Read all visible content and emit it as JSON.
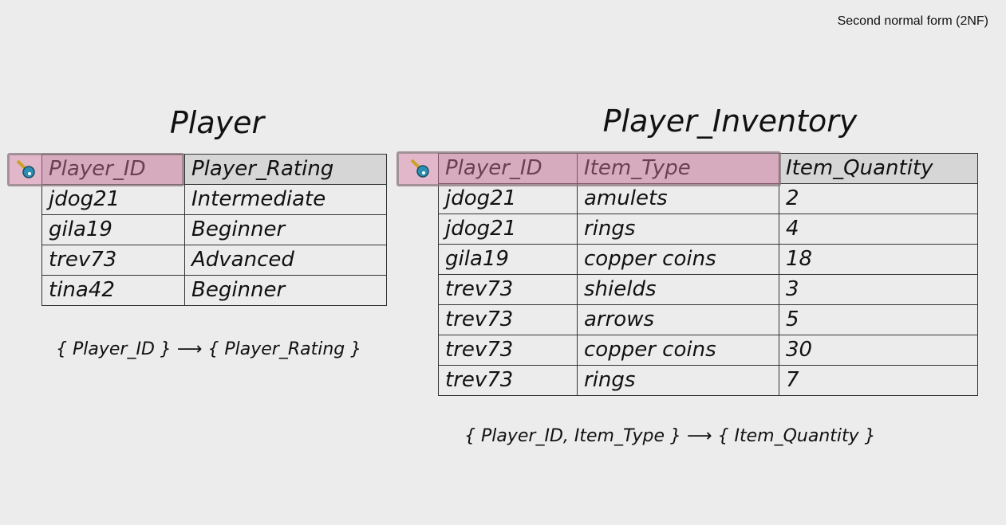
{
  "caption": "Second normal form (2NF)",
  "player": {
    "title": "Player",
    "columns": [
      "Player_ID",
      "Player_Rating"
    ],
    "rows": [
      [
        "jdog21",
        "Intermediate"
      ],
      [
        "gila19",
        "Beginner"
      ],
      [
        "trev73",
        "Advanced"
      ],
      [
        "tina42",
        "Beginner"
      ]
    ],
    "dependency": "{ Player_ID } ⟶ { Player_Rating }",
    "key_icon": "key-icon"
  },
  "inventory": {
    "title": "Player_Inventory",
    "columns": [
      "Player_ID",
      "Item_Type",
      "Item_Quantity"
    ],
    "rows": [
      [
        "jdog21",
        "amulets",
        "2"
      ],
      [
        "jdog21",
        "rings",
        "4"
      ],
      [
        "gila19",
        "copper coins",
        "18"
      ],
      [
        "trev73",
        "shields",
        "3"
      ],
      [
        "trev73",
        "arrows",
        "5"
      ],
      [
        "trev73",
        "copper coins",
        "30"
      ],
      [
        "trev73",
        "rings",
        "7"
      ]
    ],
    "dependency": "{ Player_ID, Item_Type } ⟶ { Item_Quantity }",
    "key_icon": "key-icon"
  },
  "colors": {
    "primary_key_highlight": "#d678a0",
    "header": "#d6d6d6",
    "background": "#ececec"
  }
}
